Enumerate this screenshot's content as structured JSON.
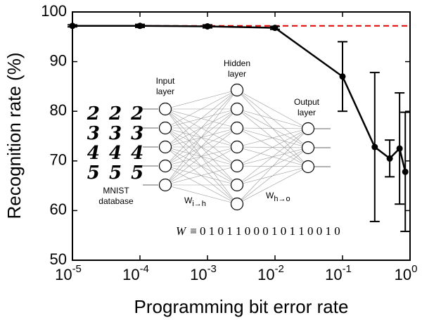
{
  "chart_data": {
    "type": "line",
    "xlabel": "Programming bit error rate",
    "ylabel": "Recognition rate (%)",
    "xscale": "log",
    "xlim": [
      1e-05,
      1
    ],
    "ylim": [
      50,
      100
    ],
    "xticks": [
      {
        "value": 1e-05,
        "label": "10",
        "exponent": "-5"
      },
      {
        "value": 0.0001,
        "label": "10",
        "exponent": "-4"
      },
      {
        "value": 0.001,
        "label": "10",
        "exponent": "-3"
      },
      {
        "value": 0.01,
        "label": "10",
        "exponent": "-2"
      },
      {
        "value": 0.1,
        "label": "10",
        "exponent": "-1"
      },
      {
        "value": 1,
        "label": "10",
        "exponent": "0"
      }
    ],
    "yticks": [
      50,
      60,
      70,
      80,
      90,
      100
    ],
    "x": [
      1e-05,
      0.0001,
      0.001,
      0.01,
      0.1,
      0.3,
      0.5,
      0.7,
      0.85
    ],
    "series": [
      {
        "color": "#000000",
        "values": [
          97.2,
          97.2,
          97.1,
          96.8,
          87,
          72.8,
          70.5,
          72.5,
          67.8
        ],
        "errors": [
          0.2,
          0.3,
          0.3,
          0.3,
          7,
          15,
          3.7,
          11.2,
          12
        ]
      }
    ],
    "reference_line": {
      "value": 97.2,
      "color": "#e00000"
    },
    "inset": {
      "input_label": [
        "Input",
        "layer"
      ],
      "hidden_label": [
        "Hidden",
        "layer"
      ],
      "output_label": [
        "Output",
        "layer"
      ],
      "database_label": [
        "MNIST",
        "database"
      ],
      "digits": [
        "2 2 2",
        "3 3 3",
        "4 4 4",
        "5 5 5"
      ],
      "w_ih": {
        "base": "W",
        "sub": "i→h"
      },
      "w_ho": {
        "base": "W",
        "sub": "h→o"
      },
      "equation": {
        "symbol": "W",
        "rest": "≡ 0 1 0 1 1 0 0 0 1 0 1 1 0 0 1 0"
      }
    }
  }
}
